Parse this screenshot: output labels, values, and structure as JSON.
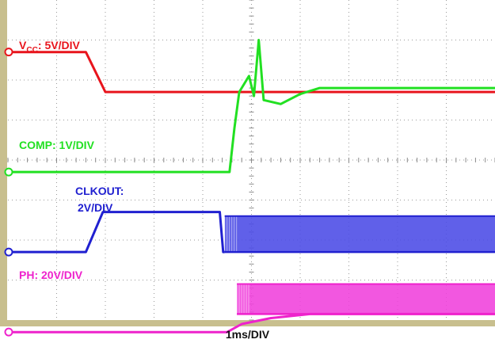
{
  "chart_data": {
    "type": "line",
    "xlabel": "1ms/DIV",
    "time_unit": "ms",
    "x_range": [
      0,
      10
    ],
    "x_divisions": 10,
    "y_divisions": 8,
    "grid": true,
    "series": [
      {
        "name": "VCC",
        "scale_label": {
          "main": "V",
          "sub": "CC",
          "rest": ": 5V/DIV"
        },
        "color": "#e8141c",
        "ground_div": 1.3,
        "points": [
          [
            0,
            1.3
          ],
          [
            1.6,
            1.3
          ],
          [
            2.0,
            2.3
          ],
          [
            10,
            2.3
          ]
        ]
      },
      {
        "name": "COMP",
        "scale_label": {
          "main": "COMP: 1V/DIV"
        },
        "color": "#22e022",
        "ground_div": 4.3,
        "points": [
          [
            0,
            4.3
          ],
          [
            4.55,
            4.3
          ],
          [
            4.65,
            3.2
          ],
          [
            4.75,
            2.3
          ],
          [
            4.95,
            1.9
          ],
          [
            5.05,
            2.4
          ],
          [
            5.15,
            1.0
          ],
          [
            5.25,
            2.5
          ],
          [
            5.6,
            2.6
          ],
          [
            6.0,
            2.35
          ],
          [
            6.4,
            2.2
          ],
          [
            10,
            2.2
          ]
        ]
      },
      {
        "name": "CLKOUT",
        "scale_label": {
          "main": "CLKOUT:",
          "line2": "2V/DIV"
        },
        "color": "#2020d0",
        "ground_div": 6.3,
        "points": [
          [
            0,
            6.3
          ],
          [
            1.6,
            6.3
          ],
          [
            1.95,
            5.3
          ],
          [
            4.35,
            5.3
          ],
          [
            4.42,
            6.3
          ],
          [
            4.45,
            6.3
          ]
        ],
        "switching": {
          "from_ms": 4.45,
          "to_ms": 10.0,
          "high_div": 5.4,
          "low_div": 6.3,
          "fill_color": "#4a4ae6"
        }
      },
      {
        "name": "PH",
        "scale_label": {
          "main": "PH: 20V/DIV"
        },
        "color": "#ee22cc",
        "ground_div": 8.3,
        "points": [
          [
            0,
            8.3
          ],
          [
            4.5,
            8.3
          ],
          [
            4.8,
            8.1
          ],
          [
            5.4,
            7.95
          ],
          [
            6.2,
            7.85
          ],
          [
            10,
            7.85
          ]
        ],
        "switching": {
          "from_ms": 4.7,
          "to_ms": 10.0,
          "high_div": 7.1,
          "low_div": 7.85,
          "fill_color": "#f040dc"
        }
      }
    ]
  }
}
